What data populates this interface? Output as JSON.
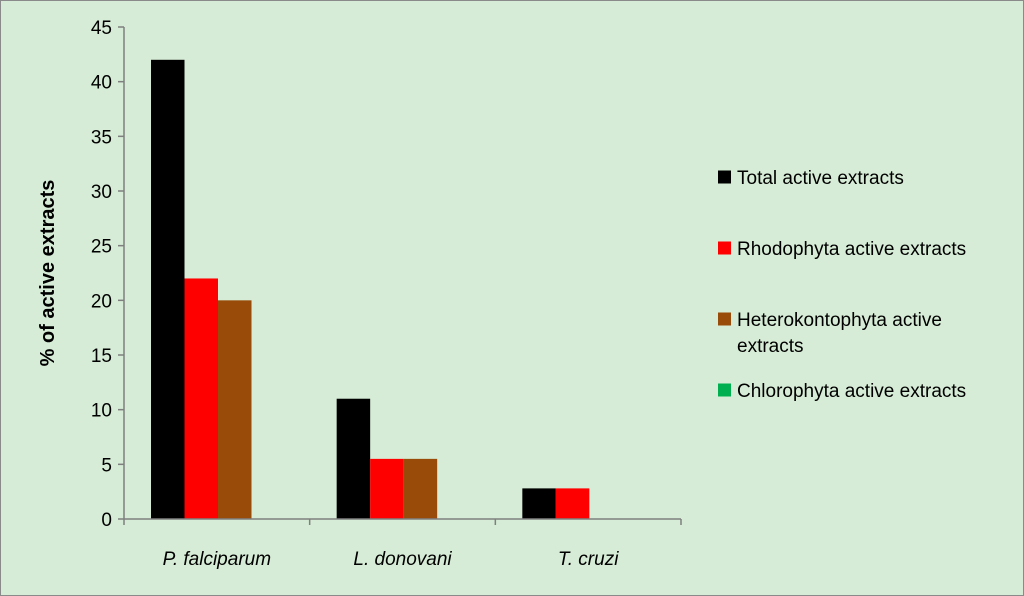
{
  "chart_data": {
    "type": "bar",
    "title": "",
    "xlabel": "",
    "ylabel": "% of active extracts",
    "ylim": [
      0,
      45
    ],
    "yticks": [
      0,
      5,
      10,
      15,
      20,
      25,
      30,
      35,
      40,
      45
    ],
    "grid": false,
    "legend_position": "right",
    "categories": [
      "P. falciparum",
      "L. donovani",
      "T. cruzi"
    ],
    "series": [
      {
        "name": "Total active extracts",
        "color": "#000000",
        "values": [
          42,
          11,
          2.8
        ]
      },
      {
        "name": "Rhodophyta active extracts",
        "color": "#ff0000",
        "values": [
          22,
          5.5,
          2.8
        ]
      },
      {
        "name": "Heterokontophyta active extracts",
        "color": "#994c0a",
        "values": [
          20,
          5.5,
          0
        ]
      },
      {
        "name": "Chlorophyta active extracts",
        "color": "#00b050",
        "values": [
          0,
          0,
          0
        ]
      }
    ]
  }
}
